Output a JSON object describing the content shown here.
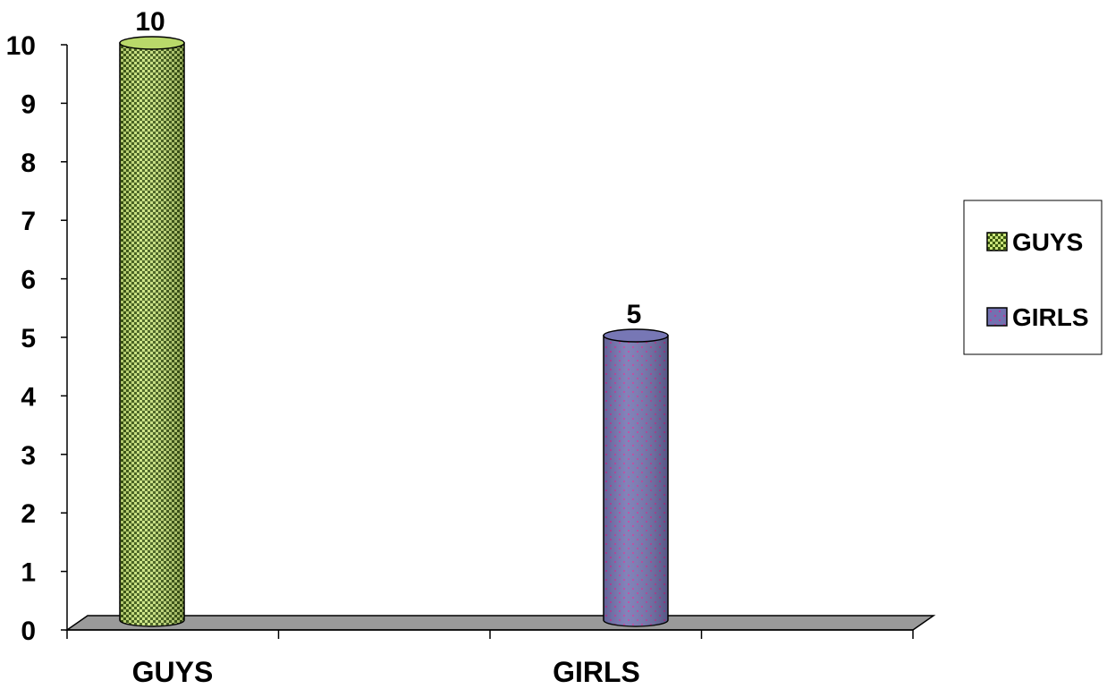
{
  "chart_data": {
    "type": "bar",
    "categories": [
      "GUYS",
      "GIRLS"
    ],
    "series": [
      {
        "name": "GUYS",
        "values": [
          10,
          null
        ],
        "color": "#b5d95a",
        "pattern": "checker"
      },
      {
        "name": "GIRLS",
        "values": [
          null,
          5
        ],
        "color": "#6f6fab",
        "pattern": "dots"
      }
    ],
    "data_labels": [
      "10",
      "5"
    ],
    "yticks": [
      "0",
      "1",
      "2",
      "3",
      "4",
      "5",
      "6",
      "7",
      "8",
      "9",
      "10"
    ],
    "ylim": [
      0,
      10
    ],
    "legend": {
      "position": "right",
      "entries": [
        "GUYS",
        "GIRLS"
      ]
    },
    "grid": false,
    "style": "3d-cylinder"
  }
}
